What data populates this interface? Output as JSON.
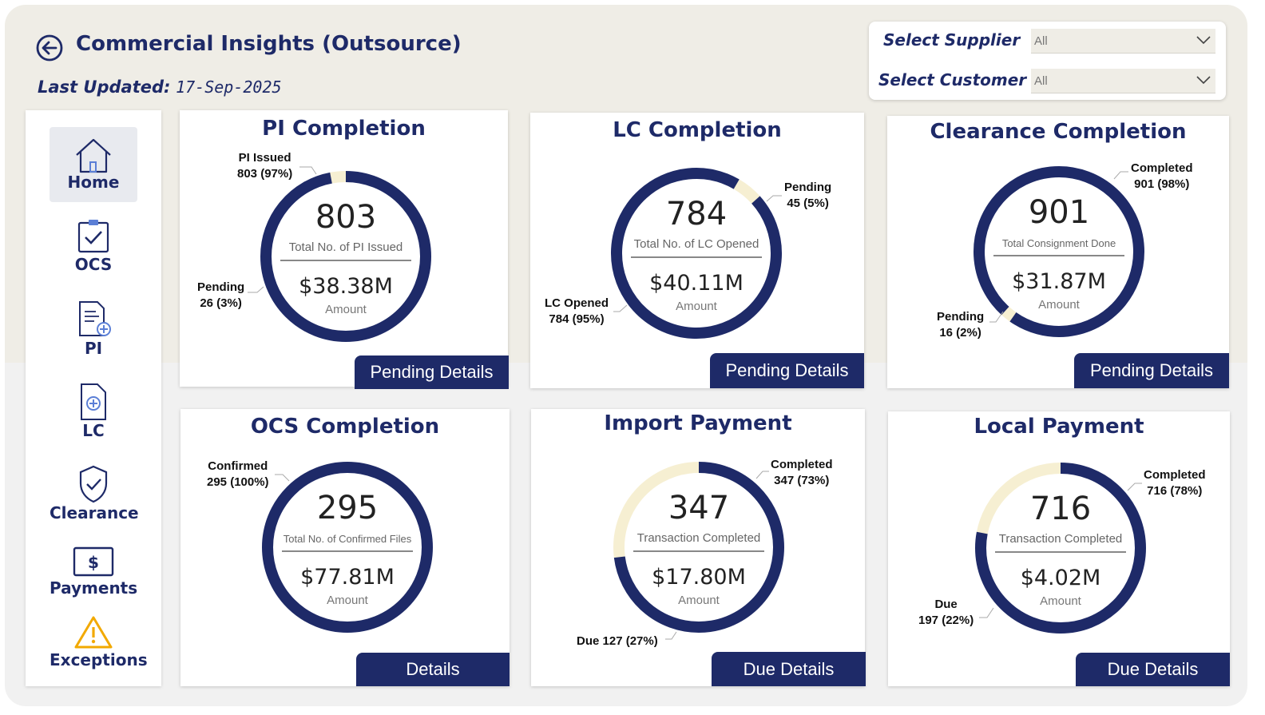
{
  "header": {
    "title": "Commercial Insights (Outsource)",
    "last_updated_label": "Last Updated:",
    "last_updated_value": "17-Sep-2025"
  },
  "filters": {
    "supplier_label": "Select Supplier",
    "supplier_value": "All",
    "customer_label": "Select Customer",
    "customer_value": "All"
  },
  "sidebar": {
    "items": [
      {
        "label": "Home",
        "icon": "home-icon",
        "active": true
      },
      {
        "label": "OCS",
        "icon": "clipboard-check-icon"
      },
      {
        "label": "PI",
        "icon": "document-add-icon"
      },
      {
        "label": "LC",
        "icon": "file-plus-icon"
      },
      {
        "label": "Clearance",
        "icon": "shield-check-icon"
      },
      {
        "label": "Payments",
        "icon": "dollar-bill-icon"
      },
      {
        "label": "Exceptions",
        "icon": "warning-icon"
      }
    ]
  },
  "colors": {
    "navy": "#1e2a68",
    "cream": "#f6efd2",
    "header_bg": "#efede6",
    "warning": "#f2a900"
  },
  "cards": [
    {
      "title": "PI Completion",
      "count": "803",
      "count_label": "Total No. of PI Issued",
      "amount": "$38.38M",
      "amount_label": "Amount",
      "primary_fraction": 0.97,
      "label_a_title": "PI Issued",
      "label_a_value": "803 (97%)",
      "label_b_title": "Pending",
      "label_b_value": "26 (3%)",
      "button": "Pending Details"
    },
    {
      "title": "LC Completion",
      "count": "784",
      "count_label": "Total No. of LC Opened",
      "amount": "$40.11M",
      "amount_label": "Amount",
      "primary_fraction": 0.95,
      "label_a_title": "Pending",
      "label_a_value": "45 (5%)",
      "label_b_title": "LC Opened",
      "label_b_value": "784 (95%)",
      "button": "Pending Details"
    },
    {
      "title": "Clearance Completion",
      "count": "901",
      "count_label": "Total Consignment Done",
      "amount": "$31.87M",
      "amount_label": "Amount",
      "primary_fraction": 0.98,
      "label_a_title": "Completed",
      "label_a_value": "901 (98%)",
      "label_b_title": "Pending",
      "label_b_value": "16 (2%)",
      "button": "Pending Details"
    },
    {
      "title": "OCS Completion",
      "count": "295",
      "count_label": "Total No. of Confirmed Files",
      "amount": "$77.81M",
      "amount_label": "Amount",
      "primary_fraction": 1.0,
      "label_a_title": "Confirmed",
      "label_a_value": "295 (100%)",
      "button": "Details"
    },
    {
      "title": "Import Payment",
      "count": "347",
      "count_label": "Transaction Completed",
      "amount": "$17.80M",
      "amount_label": "Amount",
      "primary_fraction": 0.73,
      "label_a_title": "Completed",
      "label_a_value": "347 (73%)",
      "label_b_single": "Due 127 (27%)",
      "button": "Due Details"
    },
    {
      "title": "Local Payment",
      "count": "716",
      "count_label": "Transaction Completed",
      "amount": "$4.02M",
      "amount_label": "Amount",
      "primary_fraction": 0.78,
      "label_a_title": "Completed",
      "label_a_value": "716 (78%)",
      "label_b_title": "Due",
      "label_b_value": "197 (22%)",
      "button": "Due Details"
    }
  ]
}
